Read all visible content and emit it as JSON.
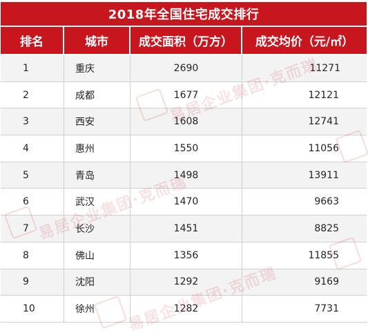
{
  "title": "2018年全国住宅成交排行",
  "columns": [
    "排名",
    "城市",
    "成交面积（万方）",
    "成交均价（元/㎡）"
  ],
  "rows": [
    {
      "rank": "1",
      "city": "重庆",
      "area": "2690",
      "price": "11271"
    },
    {
      "rank": "2",
      "city": "成都",
      "area": "1677",
      "price": "12121"
    },
    {
      "rank": "3",
      "city": "西安",
      "area": "1608",
      "price": "12741"
    },
    {
      "rank": "4",
      "city": "惠州",
      "area": "1550",
      "price": "11056"
    },
    {
      "rank": "5",
      "city": "青岛",
      "area": "1498",
      "price": "13911"
    },
    {
      "rank": "6",
      "city": "武汉",
      "area": "1470",
      "price": "9663"
    },
    {
      "rank": "7",
      "city": "长沙",
      "area": "1451",
      "price": "8825"
    },
    {
      "rank": "8",
      "city": "佛山",
      "area": "1356",
      "price": "11855"
    },
    {
      "rank": "9",
      "city": "沈阳",
      "area": "1292",
      "price": "9169"
    },
    {
      "rank": "10",
      "city": "徐州",
      "area": "1282",
      "price": "7731"
    }
  ],
  "watermark": "易居企业集团·克而瑞",
  "colors": {
    "header_red": "#c8161e",
    "row_alt": "#f3f3f3",
    "text": "#222222"
  }
}
